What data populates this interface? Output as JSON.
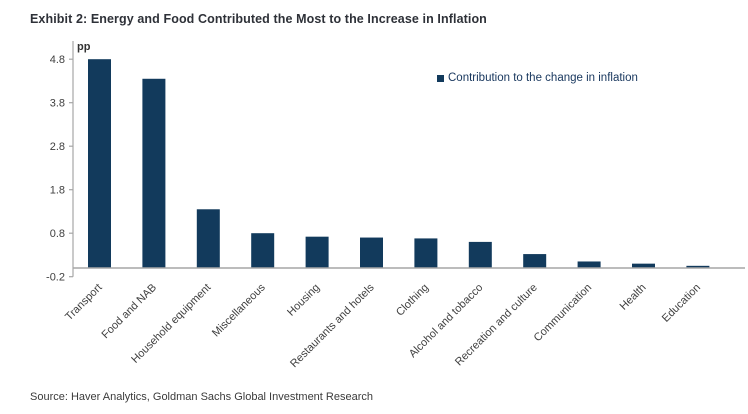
{
  "title": "Exhibit 2: Energy and Food Contributed the Most to the Increase in Inflation",
  "source": "Source: Haver Analytics, Goldman Sachs Global Investment Research",
  "legend": {
    "label": "Contribution to the change in inflation"
  },
  "colors": {
    "bar": "#123a5c",
    "legend_text": "#17365d",
    "axis_line": "#a6a6a6",
    "tick_text": "#3f3f3f",
    "title_text": "#2e3138"
  },
  "chart_data": {
    "type": "bar",
    "title": "Exhibit 2: Energy and Food Contributed the Most to the Increase in Inflation",
    "series_name": "Contribution to the change in inflation",
    "unit_label": "pp",
    "categories": [
      "Transport",
      "Food and NAB",
      "Household equipment",
      "Miscellaneous",
      "Housing",
      "Restaurants and hotels",
      "Clothing",
      "Alcohol and tobacco",
      "Recreation and culture",
      "Communication",
      "Health",
      "Education"
    ],
    "values": [
      4.8,
      4.35,
      1.35,
      0.8,
      0.72,
      0.7,
      0.68,
      0.6,
      0.32,
      0.15,
      0.1,
      0.05
    ],
    "xlabel": "",
    "ylabel": "pp",
    "ylim": [
      -0.2,
      4.8
    ],
    "yticks": [
      4.8,
      3.8,
      2.8,
      1.8,
      0.8,
      -0.2
    ],
    "grid": false,
    "legend_position": "top-right",
    "bar_color": "#123a5c",
    "x_tick_rotation_deg": 45
  }
}
